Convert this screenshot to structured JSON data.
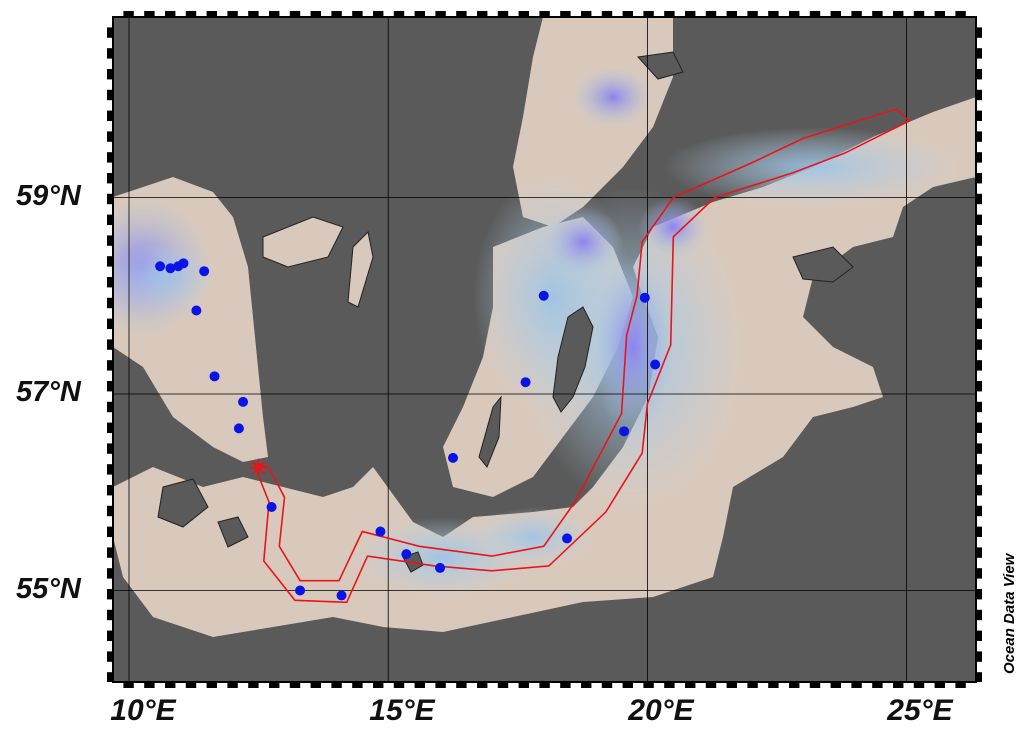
{
  "map": {
    "latitude_labels": [
      "59°N",
      "57°N",
      "55°N"
    ],
    "longitude_labels": [
      "10°E",
      "15°E",
      "20°E",
      "25°E"
    ],
    "brand": "Ocean Data View",
    "colors": {
      "land": "#5a5a5a",
      "sea_shallow": "#d9c9bd",
      "sea_mid": "#a9c8e0",
      "sea_deep": "#8c7ff0",
      "track": "#e8141a",
      "stations": "#0a14e6",
      "start_marker": "#e8141a"
    },
    "start_marker": {
      "lon": 12.5,
      "lat": 56.25,
      "symbol": "asterisk"
    },
    "stations": [
      {
        "lon": 10.6,
        "lat": 58.3
      },
      {
        "lon": 10.8,
        "lat": 58.28
      },
      {
        "lon": 10.95,
        "lat": 58.3
      },
      {
        "lon": 11.05,
        "lat": 58.33
      },
      {
        "lon": 11.45,
        "lat": 58.25
      },
      {
        "lon": 11.3,
        "lat": 57.85
      },
      {
        "lon": 11.65,
        "lat": 57.18
      },
      {
        "lon": 12.2,
        "lat": 56.92
      },
      {
        "lon": 12.12,
        "lat": 56.65
      },
      {
        "lon": 12.75,
        "lat": 55.85
      },
      {
        "lon": 13.3,
        "lat": 55.0
      },
      {
        "lon": 14.1,
        "lat": 54.95
      },
      {
        "lon": 14.85,
        "lat": 55.6
      },
      {
        "lon": 15.35,
        "lat": 55.37
      },
      {
        "lon": 16.0,
        "lat": 55.23
      },
      {
        "lon": 16.25,
        "lat": 56.35
      },
      {
        "lon": 17.65,
        "lat": 57.12
      },
      {
        "lon": 18.0,
        "lat": 58.0
      },
      {
        "lon": 18.45,
        "lat": 55.53
      },
      {
        "lon": 19.55,
        "lat": 56.62
      },
      {
        "lon": 20.15,
        "lat": 57.3
      },
      {
        "lon": 19.95,
        "lat": 57.98
      }
    ],
    "track_polygon": [
      {
        "lon": 12.4,
        "lat": 56.3
      },
      {
        "lon": 12.7,
        "lat": 56.25
      },
      {
        "lon": 13.0,
        "lat": 55.95
      },
      {
        "lon": 12.9,
        "lat": 55.45
      },
      {
        "lon": 13.3,
        "lat": 55.1
      },
      {
        "lon": 14.05,
        "lat": 55.1
      },
      {
        "lon": 14.5,
        "lat": 55.6
      },
      {
        "lon": 15.6,
        "lat": 55.45
      },
      {
        "lon": 17.0,
        "lat": 55.35
      },
      {
        "lon": 18.0,
        "lat": 55.45
      },
      {
        "lon": 18.6,
        "lat": 55.9
      },
      {
        "lon": 19.5,
        "lat": 56.8
      },
      {
        "lon": 19.6,
        "lat": 57.6
      },
      {
        "lon": 19.8,
        "lat": 58.0
      },
      {
        "lon": 19.9,
        "lat": 58.55
      },
      {
        "lon": 20.5,
        "lat": 59.0
      },
      {
        "lon": 22.0,
        "lat": 59.35
      },
      {
        "lon": 23.0,
        "lat": 59.6
      },
      {
        "lon": 24.8,
        "lat": 59.9
      },
      {
        "lon": 25.05,
        "lat": 59.78
      },
      {
        "lon": 23.8,
        "lat": 59.45
      },
      {
        "lon": 22.8,
        "lat": 59.25
      },
      {
        "lon": 21.3,
        "lat": 59.0
      },
      {
        "lon": 20.5,
        "lat": 58.6
      },
      {
        "lon": 20.45,
        "lat": 57.5
      },
      {
        "lon": 20.0,
        "lat": 56.9
      },
      {
        "lon": 19.9,
        "lat": 56.4
      },
      {
        "lon": 19.2,
        "lat": 55.8
      },
      {
        "lon": 18.1,
        "lat": 55.25
      },
      {
        "lon": 17.0,
        "lat": 55.2
      },
      {
        "lon": 15.9,
        "lat": 55.25
      },
      {
        "lon": 14.6,
        "lat": 55.35
      },
      {
        "lon": 14.2,
        "lat": 54.88
      },
      {
        "lon": 13.2,
        "lat": 54.9
      },
      {
        "lon": 12.6,
        "lat": 55.3
      },
      {
        "lon": 12.7,
        "lat": 55.9
      }
    ]
  }
}
